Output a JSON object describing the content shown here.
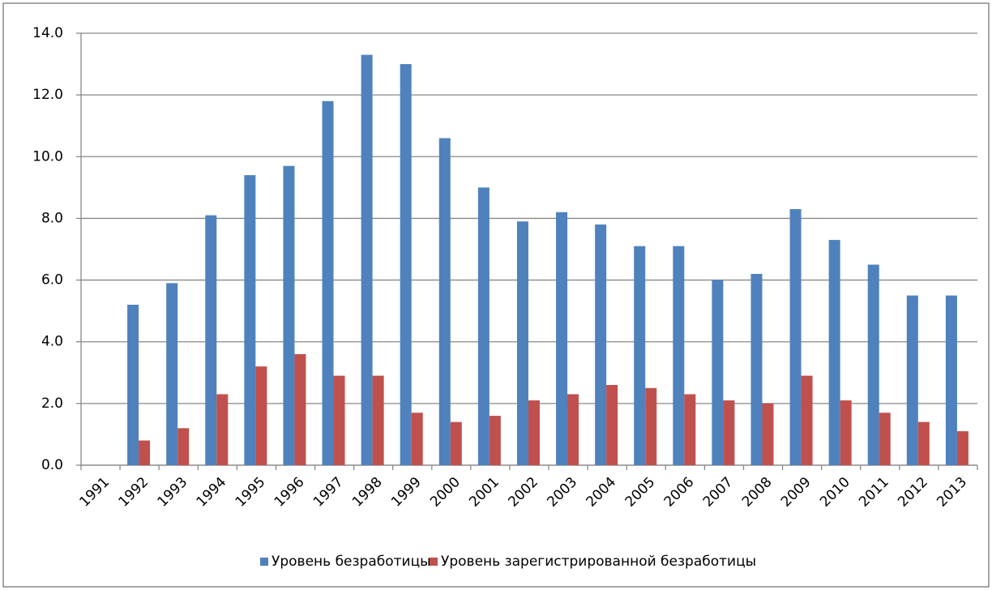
{
  "chart_data": {
    "type": "bar",
    "categories": [
      "1991",
      "1992",
      "1993",
      "1994",
      "1995",
      "1996",
      "1997",
      "1998",
      "1999",
      "2000",
      "2001",
      "2002",
      "2003",
      "2004",
      "2005",
      "2006",
      "2007",
      "2008",
      "2009",
      "2010",
      "2011",
      "2012",
      "2013"
    ],
    "series": [
      {
        "name": "Уровень безработицы",
        "color": "#4f81bd",
        "values": [
          null,
          5.2,
          5.9,
          8.1,
          9.4,
          9.7,
          11.8,
          13.3,
          13.0,
          10.6,
          9.0,
          7.9,
          8.2,
          7.8,
          7.1,
          7.1,
          6.0,
          6.2,
          8.3,
          7.3,
          6.5,
          5.5,
          5.5
        ]
      },
      {
        "name": "Уровень зарегистрированной безработицы",
        "color": "#c0504d",
        "values": [
          null,
          0.8,
          1.2,
          2.3,
          3.2,
          3.6,
          2.9,
          2.9,
          1.7,
          1.4,
          1.6,
          2.1,
          2.3,
          2.6,
          2.5,
          2.3,
          2.1,
          2.0,
          2.9,
          2.1,
          1.7,
          1.4,
          1.1
        ]
      }
    ],
    "ylim": [
      0,
      14
    ],
    "yticks": [
      {
        "value": 0,
        "label": "0.0"
      },
      {
        "value": 2,
        "label": "2.0"
      },
      {
        "value": 4,
        "label": "4.0"
      },
      {
        "value": 6,
        "label": "6.0"
      },
      {
        "value": 8,
        "label": "8.0"
      },
      {
        "value": 10,
        "label": "10.0"
      },
      {
        "value": 12,
        "label": "12.0"
      },
      {
        "value": 14,
        "label": "14.0"
      }
    ],
    "grid": true,
    "legend": "bottom"
  }
}
